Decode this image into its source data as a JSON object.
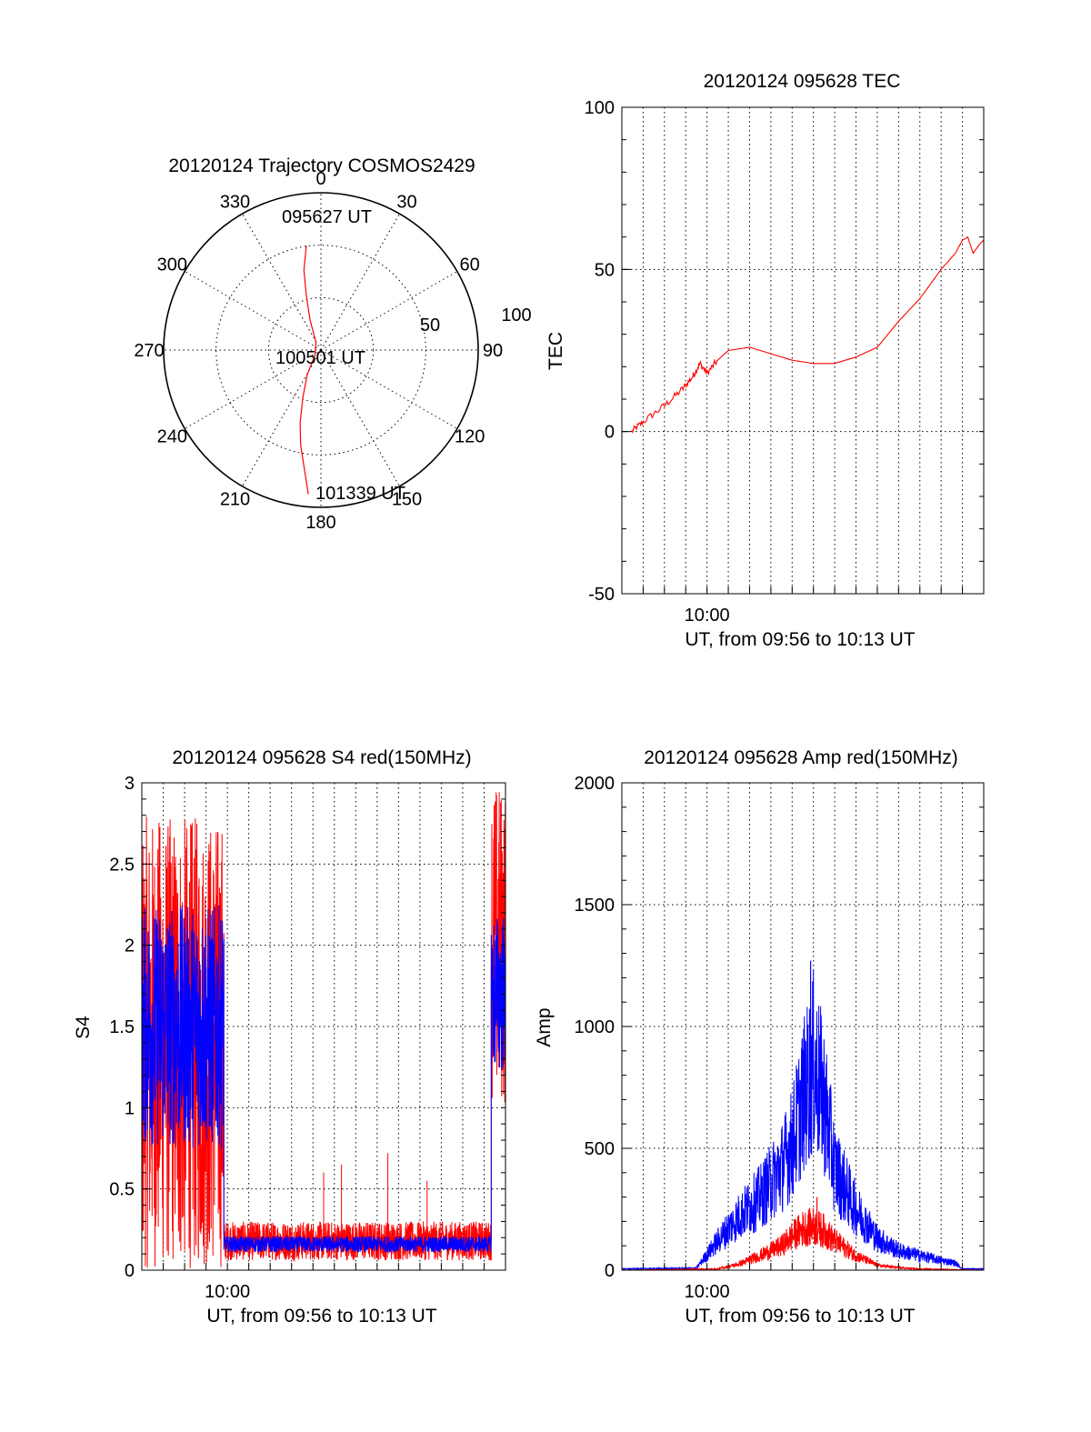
{
  "colors": {
    "red_channel": "#ff0000",
    "blue_channel": "#0000ff",
    "axes": "#000000",
    "grid": "#000000",
    "background": "#ffffff"
  },
  "chart_data": [
    {
      "id": "trajectory",
      "type": "scatter",
      "polar": true,
      "title": "20120124 Trajectory COSMOS2429",
      "azimuth_labels": [
        "0",
        "30",
        "60",
        "90",
        "120",
        "150",
        "180",
        "210",
        "240",
        "270",
        "300",
        "330"
      ],
      "radial_labels": [
        "50",
        "100"
      ],
      "rlim": [
        0,
        100
      ],
      "grid": true,
      "annotations": [
        "095627 UT",
        "100501 UT",
        "101339 UT"
      ],
      "series": [
        {
          "color": "#ff0000",
          "points": [
            [
              352,
              67
            ],
            [
              348,
              52
            ],
            [
              345,
              36
            ],
            [
              340,
              20
            ],
            [
              328,
              6
            ],
            [
              230,
              5
            ],
            [
              209,
              18
            ],
            [
              201,
              32
            ],
            [
              196,
              48
            ],
            [
              192,
              62
            ],
            [
              188,
              76
            ],
            [
              185,
              92
            ]
          ]
        }
      ],
      "markers": [
        {
          "label": "095627 UT",
          "az": 352,
          "r": 67
        },
        {
          "label": "100501 UT",
          "az": 328,
          "r": 6
        },
        {
          "label": "101339 UT",
          "az": 185,
          "r": 92
        }
      ]
    },
    {
      "id": "tec",
      "type": "line",
      "title": "20120124 095628 TEC",
      "xlabel": "UT, from 09:56 to 10:13 UT",
      "ylabel": "TEC",
      "xlim": [
        "09:56",
        "10:13"
      ],
      "ylim": [
        -50,
        100
      ],
      "yticks": [
        "-50",
        "0",
        "50",
        "100"
      ],
      "xticks": [
        "10:00"
      ],
      "grid": true,
      "series": [
        {
          "color": "#ff0000",
          "x": [
            "09:56:28",
            "09:57:00",
            "09:58:00",
            "09:58:50",
            "09:59:20",
            "09:59:40",
            "10:00:00",
            "10:00:30",
            "10:01:00",
            "10:02:00",
            "10:03:00",
            "10:04:00",
            "10:05:00",
            "10:06:00",
            "10:07:00",
            "10:08:00",
            "10:09:00",
            "10:10:00",
            "10:11:00",
            "10:11:40",
            "10:12:00",
            "10:12:15",
            "10:12:30",
            "10:12:50",
            "10:13:00"
          ],
          "y": [
            0,
            3,
            8,
            13,
            17,
            21,
            18,
            22,
            25,
            26,
            24,
            22,
            21,
            21,
            23,
            26,
            34,
            41,
            50,
            55,
            59,
            60,
            55,
            58,
            59
          ]
        }
      ]
    },
    {
      "id": "s4",
      "type": "line",
      "title": "20120124 095628 S4 red(150MHz)",
      "xlabel": "UT, from 09:56 to 10:13 UT",
      "ylabel": "S4",
      "xlim": [
        "09:56",
        "10:13"
      ],
      "ylim": [
        0,
        3
      ],
      "yticks": [
        "0",
        "0.5",
        "1",
        "1.5",
        "2",
        "2.5",
        "3"
      ],
      "xticks": [
        "10:00"
      ],
      "grid": true,
      "series": [
        {
          "color": "#0000ff",
          "segments": [
            {
              "from": "09:56:00",
              "to": "09:59:50",
              "base": 1.5,
              "noise": 0.75
            },
            {
              "from": "09:59:50",
              "to": "10:12:20",
              "base": 0.16,
              "noise": 0.05
            },
            {
              "from": "10:12:20",
              "to": "10:13:00",
              "base": 1.7,
              "noise": 0.5
            }
          ]
        },
        {
          "color": "#ff0000",
          "segments": [
            {
              "from": "09:56:00",
              "to": "09:59:50",
              "base": 1.4,
              "noise": 1.4
            },
            {
              "from": "09:59:50",
              "to": "10:12:20",
              "base": 0.18,
              "noise": 0.12
            },
            {
              "from": "10:12:20",
              "to": "10:13:00",
              "base": 2.0,
              "noise": 1.0
            }
          ],
          "spikes": [
            {
              "x": "10:04:30",
              "y": 0.6
            },
            {
              "x": "10:05:20",
              "y": 0.65
            },
            {
              "x": "10:07:30",
              "y": 0.72
            },
            {
              "x": "10:09:20",
              "y": 0.55
            }
          ]
        }
      ]
    },
    {
      "id": "amp",
      "type": "line",
      "title": "20120124 095628 Amp red(150MHz)",
      "xlabel": "UT, from 09:56 to 10:13 UT",
      "ylabel": "Amp",
      "xlim": [
        "09:56",
        "10:13"
      ],
      "ylim": [
        0,
        2000
      ],
      "yticks": [
        "0",
        "500",
        "1000",
        "1500",
        "2000"
      ],
      "xticks": [
        "10:00"
      ],
      "grid": true,
      "series": [
        {
          "color": "#0000ff",
          "envelope": {
            "x": [
              "09:56:00",
              "09:59:30",
              "10:00:30",
              "10:01:30",
              "10:02:30",
              "10:03:30",
              "10:04:00",
              "10:04:30",
              "10:05:00",
              "10:05:30",
              "10:06:00",
              "10:07:00",
              "10:08:00",
              "10:09:00",
              "10:10:00",
              "10:11:00",
              "10:11:40",
              "10:12:00",
              "10:13:00"
            ],
            "y": [
              5,
              8,
              120,
              220,
              300,
              420,
              520,
              700,
              850,
              700,
              420,
              250,
              130,
              80,
              60,
              40,
              30,
              5,
              5
            ]
          },
          "peak": {
            "x": "10:04:52",
            "y": 1270
          }
        },
        {
          "color": "#ff0000",
          "envelope": {
            "x": [
              "09:56:00",
              "10:00:30",
              "10:01:30",
              "10:02:30",
              "10:03:30",
              "10:04:00",
              "10:04:30",
              "10:05:00",
              "10:05:30",
              "10:06:00",
              "10:07:00",
              "10:08:00",
              "10:09:00",
              "10:10:00",
              "10:13:00"
            ],
            "y": [
              0,
              5,
              25,
              60,
              100,
              140,
              170,
              180,
              160,
              120,
              60,
              20,
              10,
              5,
              0
            ]
          },
          "peak": {
            "x": "10:05:10",
            "y": 300
          }
        }
      ]
    }
  ]
}
